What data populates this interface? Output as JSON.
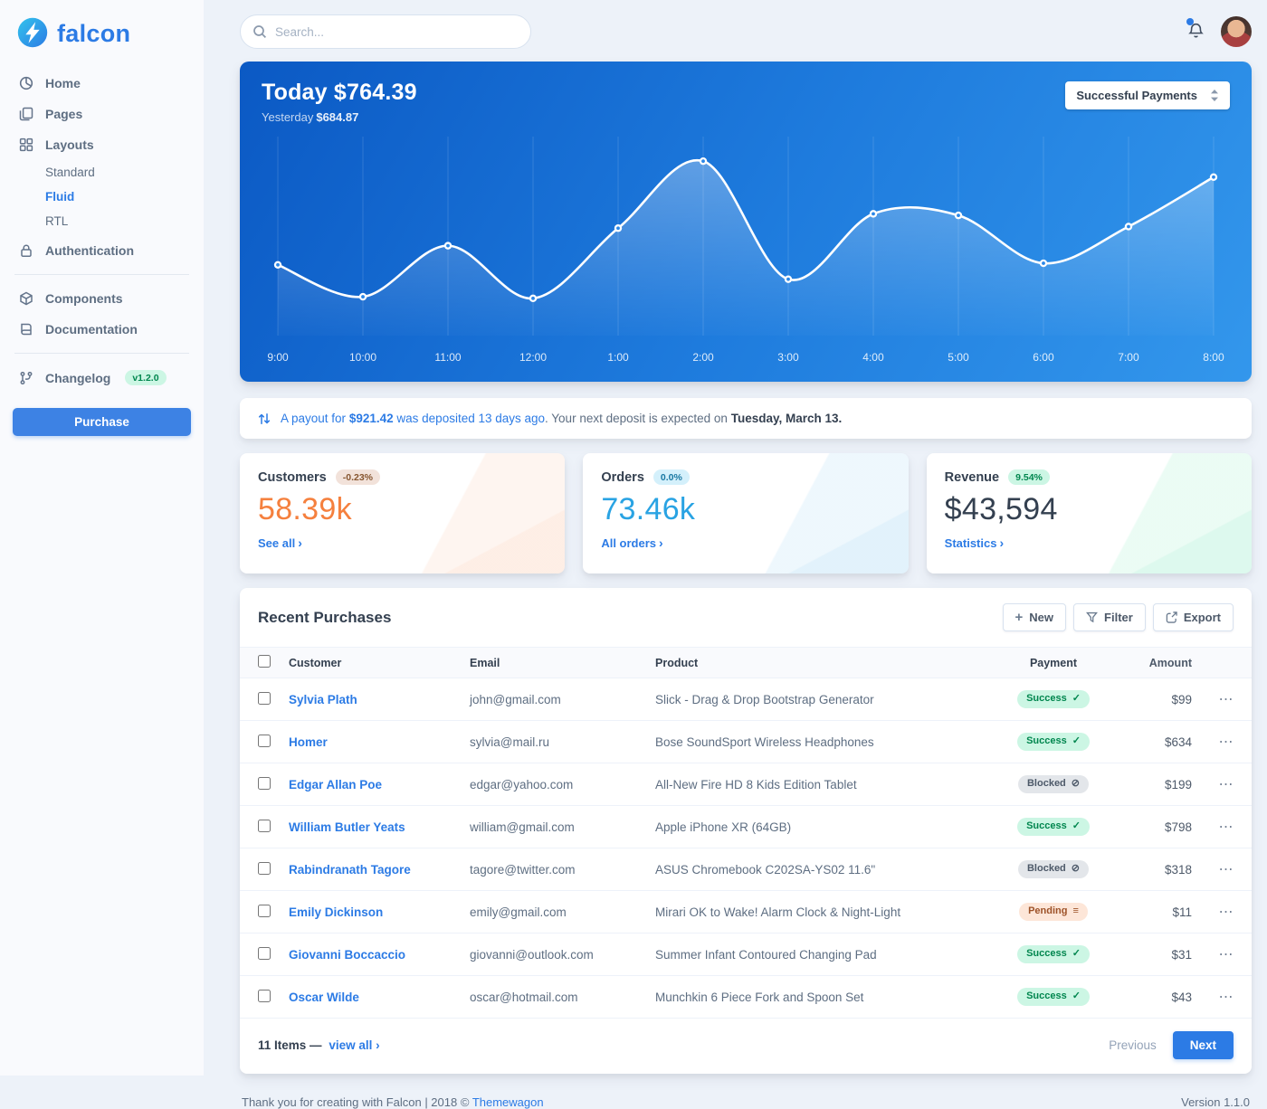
{
  "brand": {
    "name": "falcon"
  },
  "topbar": {
    "search_placeholder": "Search..."
  },
  "colors": {
    "primary": "#2c7be5",
    "success": "#00d27a",
    "info": "#29a3e3",
    "warning": "#f5803e",
    "hero_gradient": [
      "#0b59c4",
      "#3397ec"
    ]
  },
  "sidebar": {
    "items": [
      {
        "label": "Home"
      },
      {
        "label": "Pages"
      },
      {
        "label": "Layouts"
      },
      {
        "label": "Authentication"
      },
      {
        "label": "Components"
      },
      {
        "label": "Documentation"
      },
      {
        "label": "Changelog",
        "badge": "v1.2.0"
      }
    ],
    "layouts_children": [
      {
        "label": "Standard"
      },
      {
        "label": "Fluid",
        "active": true
      },
      {
        "label": "RTL"
      }
    ],
    "purchase_label": "Purchase"
  },
  "hero": {
    "title": "Today $764.39",
    "yesterday_label": "Yesterday",
    "yesterday_value": "$684.87",
    "select_label": "Successful Payments"
  },
  "chart_data": {
    "type": "line",
    "title": "Today $764.39",
    "x": [
      "9:00",
      "10:00",
      "11:00",
      "12:00",
      "1:00",
      "2:00",
      "3:00",
      "4:00",
      "5:00",
      "6:00",
      "7:00",
      "8:00"
    ],
    "series": [
      {
        "name": "Successful Payments",
        "values": [
          33,
          13,
          45,
          12,
          56,
          98,
          24,
          65,
          64,
          34,
          57,
          88
        ]
      }
    ],
    "ylim": [
      0,
      110
    ],
    "grid": "vertical",
    "line_color": "#ffffff",
    "legend": "none"
  },
  "payout": {
    "part1": "A payout for",
    "amount": "$921.42",
    "part2": "was deposited 13 days ago",
    "part3": ". Your next deposit is expected on",
    "date": "Tuesday, March 13."
  },
  "stats": [
    {
      "title": "Customers",
      "badge": "-0.23%",
      "variant": "warning",
      "value": "58.39k",
      "value_color": "#f5803e",
      "link": "See all"
    },
    {
      "title": "Orders",
      "badge": "0.0%",
      "variant": "info",
      "value": "73.46k",
      "value_color": "#29a3e3",
      "link": "All orders"
    },
    {
      "title": "Revenue",
      "badge": "9.54%",
      "variant": "success",
      "value": "$43,594",
      "value_color": "#344050",
      "link": "Statistics"
    }
  ],
  "purchases": {
    "title": "Recent Purchases",
    "buttons": {
      "new": "New",
      "filter": "Filter",
      "export": "Export"
    },
    "headers": {
      "customer": "Customer",
      "email": "Email",
      "product": "Product",
      "payment": "Payment",
      "amount": "Amount"
    },
    "rows": [
      {
        "customer": "Sylvia Plath",
        "email": "john@gmail.com",
        "product": "Slick - Drag & Drop Bootstrap Generator",
        "status": "Success",
        "status_icon": "✓",
        "status_variant": "success",
        "amount": "$99"
      },
      {
        "customer": "Homer",
        "email": "sylvia@mail.ru",
        "product": "Bose SoundSport Wireless Headphones",
        "status": "Success",
        "status_icon": "✓",
        "status_variant": "success",
        "amount": "$634"
      },
      {
        "customer": "Edgar Allan Poe",
        "email": "edgar@yahoo.com",
        "product": "All-New Fire HD 8 Kids Edition Tablet",
        "status": "Blocked",
        "status_icon": "⊘",
        "status_variant": "blocked",
        "amount": "$199"
      },
      {
        "customer": "William Butler Yeats",
        "email": "william@gmail.com",
        "product": "Apple iPhone XR (64GB)",
        "status": "Success",
        "status_icon": "✓",
        "status_variant": "success",
        "amount": "$798"
      },
      {
        "customer": "Rabindranath Tagore",
        "email": "tagore@twitter.com",
        "product": "ASUS Chromebook C202SA-YS02 11.6\"",
        "status": "Blocked",
        "status_icon": "⊘",
        "status_variant": "blocked",
        "amount": "$318"
      },
      {
        "customer": "Emily Dickinson",
        "email": "emily@gmail.com",
        "product": "Mirari OK to Wake! Alarm Clock & Night-Light",
        "status": "Pending",
        "status_icon": "≡",
        "status_variant": "pending",
        "amount": "$11"
      },
      {
        "customer": "Giovanni Boccaccio",
        "email": "giovanni@outlook.com",
        "product": "Summer Infant Contoured Changing Pad",
        "status": "Success",
        "status_icon": "✓",
        "status_variant": "success",
        "amount": "$31"
      },
      {
        "customer": "Oscar Wilde",
        "email": "oscar@hotmail.com",
        "product": "Munchkin 6 Piece Fork and Spoon Set",
        "status": "Success",
        "status_icon": "✓",
        "status_variant": "success",
        "amount": "$43"
      }
    ],
    "footer": {
      "items_text": "11 Items —",
      "view_all": "view all",
      "previous": "Previous",
      "next": "Next"
    }
  },
  "page_footer": {
    "text": "Thank you for creating with Falcon | 2018 ©",
    "link": "Themewagon",
    "version": "Version 1.1.0"
  },
  "icons": {
    "ellipsis": "⋯",
    "chevron_right": "›",
    "plus": "+"
  }
}
